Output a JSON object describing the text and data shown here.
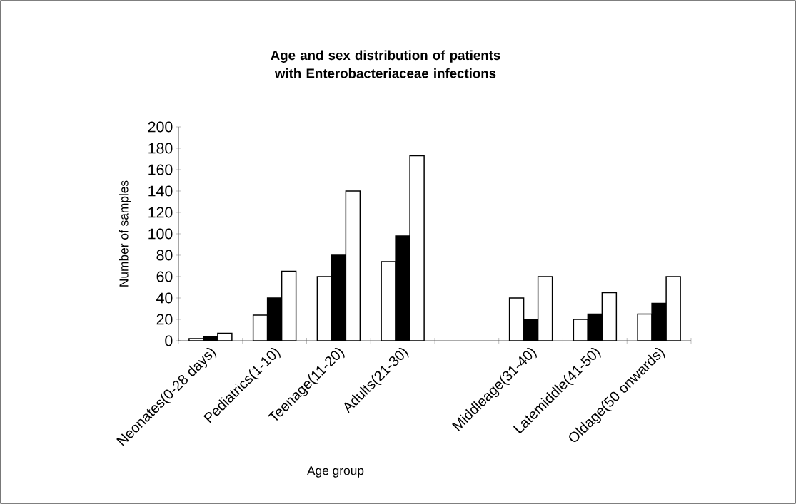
{
  "chart_data": {
    "type": "bar",
    "title": "Age and sex distribution of patients with Enterobacteriaceae infections",
    "xlabel": "Age group",
    "ylabel": "Number of samples",
    "categories": [
      "Neonates(0-28 days)",
      "Pediatrics(1-10)",
      "Teenage(11-20)",
      "Adults(21-30)",
      null,
      "Middleage(31-40)",
      "Latemiddle(41-50)",
      "Oldage(50 onwards)"
    ],
    "series": [
      {
        "color": "#ffffff",
        "values": [
          2,
          24,
          60,
          74,
          null,
          40,
          20,
          25
        ]
      },
      {
        "color": "#000000",
        "values": [
          4,
          40,
          80,
          98,
          null,
          20,
          25,
          35
        ]
      },
      {
        "color": "#ffffff",
        "values": [
          7,
          65,
          140,
          173,
          null,
          60,
          45,
          60
        ]
      }
    ],
    "ylim": [
      0,
      200
    ],
    "yticks": [
      0,
      20,
      40,
      60,
      80,
      100,
      120,
      140,
      160,
      180,
      200
    ]
  }
}
